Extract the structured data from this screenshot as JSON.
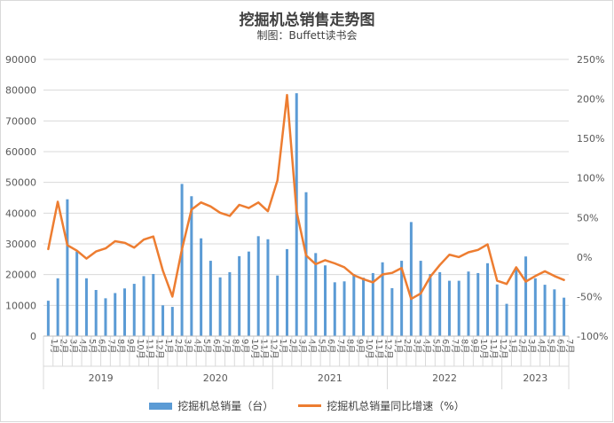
{
  "title": "挖掘机总销售走势图",
  "subtitle": "制图：Buffett读书会",
  "chart_data": {
    "type": "bar+line",
    "categories": [
      "1月",
      "2月",
      "3月",
      "4月",
      "5月",
      "6月",
      "7月",
      "8月",
      "9月",
      "10月",
      "11月",
      "12月",
      "1月",
      "2月",
      "3月",
      "4月",
      "5月",
      "6月",
      "7月",
      "8月",
      "9月",
      "10月",
      "11月",
      "12月",
      "1月",
      "2月",
      "3月",
      "4月",
      "5月",
      "6月",
      "7月",
      "8月",
      "9月",
      "10月",
      "11月",
      "12月",
      "1月",
      "2月",
      "3月",
      "4月",
      "5月",
      "6月",
      "7月",
      "8月",
      "9月",
      "10月",
      "11月",
      "12月",
      "1月",
      "2月",
      "3月",
      "4月",
      "5月",
      "6月",
      "7月"
    ],
    "years": [
      {
        "label": "2019",
        "count": 12
      },
      {
        "label": "2020",
        "count": 12
      },
      {
        "label": "2021",
        "count": 12
      },
      {
        "label": "2022",
        "count": 12
      },
      {
        "label": "2023",
        "count": 7
      }
    ],
    "series": [
      {
        "name": "挖掘机总销量（台）",
        "kind": "bar",
        "axis": "left",
        "color": "#5b9bd5",
        "values": [
          11500,
          18800,
          44500,
          27500,
          18800,
          15000,
          12300,
          14000,
          15500,
          17000,
          19500,
          20200,
          10000,
          9500,
          49500,
          45500,
          31800,
          24500,
          19100,
          20800,
          26000,
          27500,
          32500,
          31500,
          19700,
          28300,
          79000,
          46800,
          27000,
          23000,
          17500,
          17800,
          20200,
          19000,
          20500,
          24000,
          15600,
          24500,
          37100,
          24500,
          20200,
          20800,
          18000,
          18000,
          21000,
          20500,
          23700,
          16800,
          10500,
          22000,
          25900,
          18800,
          16700,
          15200,
          12500
        ]
      },
      {
        "name": "挖掘机总销量同比增速（%）",
        "kind": "line",
        "axis": "right",
        "color": "#ed7d31",
        "values": [
          10,
          70,
          15,
          8,
          -2,
          7,
          11,
          20,
          18,
          12,
          22,
          26,
          -17,
          -50,
          10,
          60,
          69,
          64,
          56,
          52,
          66,
          62,
          69,
          58,
          97,
          205,
          58,
          2,
          -9,
          -4,
          -8,
          -13,
          -23,
          -28,
          -32,
          -22,
          -20,
          -14,
          -53,
          -46,
          -25,
          -10,
          3,
          0,
          6,
          9,
          16,
          -30,
          -34,
          -13,
          -31,
          -24,
          -18,
          -24,
          -29
        ]
      }
    ],
    "y_left": {
      "min": 0,
      "max": 90000,
      "step": 10000,
      "ticks": [
        "0",
        "10000",
        "20000",
        "30000",
        "40000",
        "50000",
        "60000",
        "70000",
        "80000",
        "90000"
      ]
    },
    "y_right": {
      "min": -100,
      "max": 250,
      "step": 50,
      "ticks": [
        "-100%",
        "-50%",
        "0%",
        "50%",
        "100%",
        "150%",
        "200%",
        "250%"
      ]
    },
    "grid": true,
    "legend": "bottom"
  }
}
